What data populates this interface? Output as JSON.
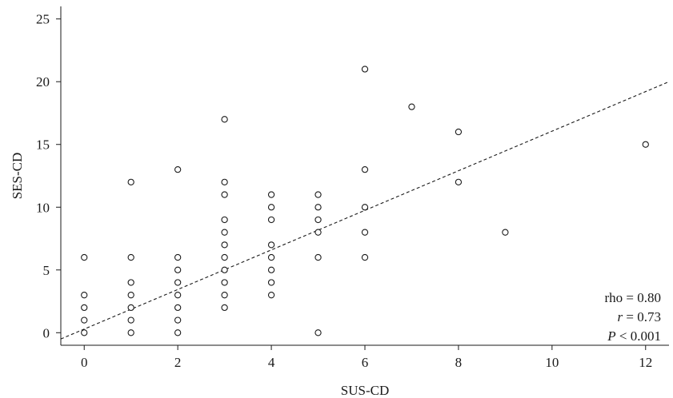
{
  "chart_data": {
    "type": "scatter",
    "title": "",
    "xlabel": "SUS-CD",
    "ylabel": "SES-CD",
    "xlim": [
      -0.5,
      12.5
    ],
    "ylim": [
      -1,
      26
    ],
    "xticks": [
      0,
      2,
      4,
      6,
      8,
      10,
      12
    ],
    "yticks": [
      0,
      5,
      10,
      15,
      20,
      25
    ],
    "grid": false,
    "points": [
      {
        "x": 0,
        "y": 0
      },
      {
        "x": 0,
        "y": 1
      },
      {
        "x": 0,
        "y": 2
      },
      {
        "x": 0,
        "y": 3
      },
      {
        "x": 0,
        "y": 6
      },
      {
        "x": 1,
        "y": 0
      },
      {
        "x": 1,
        "y": 1
      },
      {
        "x": 1,
        "y": 2
      },
      {
        "x": 1,
        "y": 3
      },
      {
        "x": 1,
        "y": 4
      },
      {
        "x": 1,
        "y": 6
      },
      {
        "x": 1,
        "y": 12
      },
      {
        "x": 2,
        "y": 0
      },
      {
        "x": 2,
        "y": 1
      },
      {
        "x": 2,
        "y": 2
      },
      {
        "x": 2,
        "y": 3
      },
      {
        "x": 2,
        "y": 4
      },
      {
        "x": 2,
        "y": 5
      },
      {
        "x": 2,
        "y": 6
      },
      {
        "x": 2,
        "y": 13
      },
      {
        "x": 3,
        "y": 2
      },
      {
        "x": 3,
        "y": 3
      },
      {
        "x": 3,
        "y": 4
      },
      {
        "x": 3,
        "y": 5
      },
      {
        "x": 3,
        "y": 6
      },
      {
        "x": 3,
        "y": 7
      },
      {
        "x": 3,
        "y": 8
      },
      {
        "x": 3,
        "y": 9
      },
      {
        "x": 3,
        "y": 11
      },
      {
        "x": 3,
        "y": 12
      },
      {
        "x": 3,
        "y": 17
      },
      {
        "x": 4,
        "y": 3
      },
      {
        "x": 4,
        "y": 4
      },
      {
        "x": 4,
        "y": 5
      },
      {
        "x": 4,
        "y": 6
      },
      {
        "x": 4,
        "y": 7
      },
      {
        "x": 4,
        "y": 9
      },
      {
        "x": 4,
        "y": 10
      },
      {
        "x": 4,
        "y": 11
      },
      {
        "x": 5,
        "y": 0
      },
      {
        "x": 5,
        "y": 6
      },
      {
        "x": 5,
        "y": 8
      },
      {
        "x": 5,
        "y": 9
      },
      {
        "x": 5,
        "y": 10
      },
      {
        "x": 5,
        "y": 11
      },
      {
        "x": 6,
        "y": 6
      },
      {
        "x": 6,
        "y": 8
      },
      {
        "x": 6,
        "y": 10
      },
      {
        "x": 6,
        "y": 13
      },
      {
        "x": 6,
        "y": 21
      },
      {
        "x": 7,
        "y": 18
      },
      {
        "x": 8,
        "y": 12
      },
      {
        "x": 8,
        "y": 16
      },
      {
        "x": 9,
        "y": 8
      },
      {
        "x": 12,
        "y": 15
      }
    ],
    "fit_line": {
      "style": "dashed",
      "x": [
        -0.5,
        12.5
      ],
      "y": [
        -0.5,
        20
      ]
    },
    "annotations": [
      {
        "text_parts": [
          "rho = 0.80"
        ],
        "italic_prefix": ""
      },
      {
        "prefix": "r",
        "suffix": " = 0.73"
      },
      {
        "prefix": "P",
        "suffix": " < 0.001"
      }
    ],
    "stats": {
      "rho_label": "rho = 0.80",
      "r_symbol": "r",
      "r_value": " = 0.73",
      "p_symbol": "P",
      "p_value": " < 0.001"
    }
  }
}
